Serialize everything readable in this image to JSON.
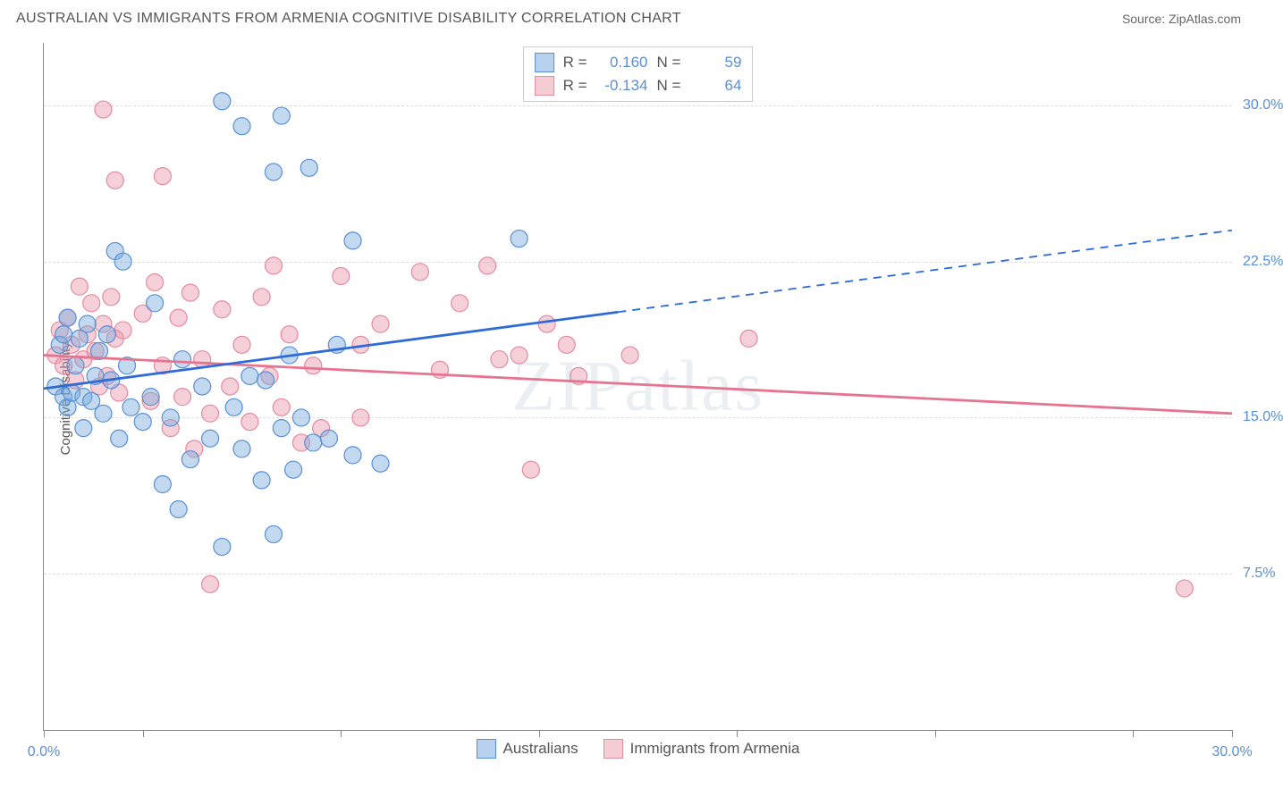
{
  "header": {
    "title": "AUSTRALIAN VS IMMIGRANTS FROM ARMENIA COGNITIVE DISABILITY CORRELATION CHART",
    "source": "Source: ZipAtlas.com"
  },
  "axes": {
    "y_label": "Cognitive Disability",
    "x_min": 0.0,
    "x_max": 30.0,
    "y_min": 0.0,
    "y_max": 33.0,
    "x_ticks": [
      0.0,
      2.5,
      7.5,
      12.5,
      17.5,
      22.5,
      27.5,
      30.0
    ],
    "x_tick_labels": {
      "0": "0.0%",
      "30": "30.0%"
    },
    "y_gridlines": [
      7.5,
      15.0,
      22.5,
      30.0
    ],
    "y_tick_labels": {
      "7.5": "7.5%",
      "15": "15.0%",
      "22.5": "22.5%",
      "30": "30.0%"
    },
    "label_color": "#555555",
    "tick_label_color": "#5a8fd6"
  },
  "watermark": "ZIPatlas",
  "series": {
    "a": {
      "name": "Australians",
      "swatch_fill": "#b7d1ee",
      "swatch_stroke": "#5a8fd6",
      "point_fill": "rgba(120,170,220,0.45)",
      "point_stroke": "#5a8fd6",
      "line_color": "#2e6bd6",
      "r_value": "0.160",
      "n_value": "59",
      "regression": {
        "x0": 0.0,
        "y0": 16.4,
        "x1": 30.0,
        "y1": 24.0,
        "solid_to_x": 14.5
      },
      "points": [
        [
          0.3,
          16.5
        ],
        [
          0.4,
          18.5
        ],
        [
          0.5,
          16.0
        ],
        [
          0.5,
          19.0
        ],
        [
          0.6,
          15.5
        ],
        [
          0.6,
          19.8
        ],
        [
          0.7,
          16.2
        ],
        [
          0.8,
          17.5
        ],
        [
          0.9,
          18.8
        ],
        [
          1.0,
          16.0
        ],
        [
          1.0,
          14.5
        ],
        [
          1.1,
          19.5
        ],
        [
          1.2,
          15.8
        ],
        [
          1.3,
          17.0
        ],
        [
          1.4,
          18.2
        ],
        [
          1.5,
          15.2
        ],
        [
          1.6,
          19.0
        ],
        [
          1.7,
          16.8
        ],
        [
          1.8,
          23.0
        ],
        [
          1.9,
          14.0
        ],
        [
          2.0,
          22.5
        ],
        [
          2.1,
          17.5
        ],
        [
          2.2,
          15.5
        ],
        [
          2.5,
          14.8
        ],
        [
          2.7,
          16.0
        ],
        [
          2.8,
          20.5
        ],
        [
          3.0,
          11.8
        ],
        [
          3.2,
          15.0
        ],
        [
          3.4,
          10.6
        ],
        [
          3.5,
          17.8
        ],
        [
          3.7,
          13.0
        ],
        [
          4.0,
          16.5
        ],
        [
          4.2,
          14.0
        ],
        [
          4.5,
          8.8
        ],
        [
          4.5,
          30.2
        ],
        [
          4.8,
          15.5
        ],
        [
          5.0,
          13.5
        ],
        [
          5.0,
          29.0
        ],
        [
          5.2,
          17.0
        ],
        [
          5.5,
          12.0
        ],
        [
          5.6,
          16.8
        ],
        [
          5.8,
          9.4
        ],
        [
          5.8,
          26.8
        ],
        [
          6.0,
          14.5
        ],
        [
          6.0,
          29.5
        ],
        [
          6.2,
          18.0
        ],
        [
          6.3,
          12.5
        ],
        [
          6.7,
          27.0
        ],
        [
          6.5,
          15.0
        ],
        [
          6.8,
          13.8
        ],
        [
          7.2,
          14.0
        ],
        [
          7.4,
          18.5
        ],
        [
          7.8,
          23.5
        ],
        [
          7.8,
          13.2
        ],
        [
          8.5,
          12.8
        ],
        [
          12.0,
          23.6
        ]
      ]
    },
    "b": {
      "name": "Immigrants from Armenia",
      "swatch_fill": "#f6ccd5",
      "swatch_stroke": "#e38ba0",
      "point_fill": "rgba(235,150,170,0.45)",
      "point_stroke": "#e38ba0",
      "line_color": "#e67390",
      "r_value": "-0.134",
      "n_value": "64",
      "regression": {
        "x0": 0.0,
        "y0": 18.0,
        "x1": 30.0,
        "y1": 15.2,
        "solid_to_x": 30.0
      },
      "points": [
        [
          0.3,
          18.0
        ],
        [
          0.4,
          19.2
        ],
        [
          0.5,
          17.5
        ],
        [
          0.6,
          19.8
        ],
        [
          0.7,
          18.5
        ],
        [
          0.8,
          16.8
        ],
        [
          0.9,
          21.3
        ],
        [
          1.0,
          17.8
        ],
        [
          1.1,
          19.0
        ],
        [
          1.2,
          20.5
        ],
        [
          1.3,
          18.2
        ],
        [
          1.4,
          16.5
        ],
        [
          1.5,
          19.5
        ],
        [
          1.5,
          29.8
        ],
        [
          1.6,
          17.0
        ],
        [
          1.7,
          20.8
        ],
        [
          1.8,
          18.8
        ],
        [
          1.8,
          26.4
        ],
        [
          1.9,
          16.2
        ],
        [
          2.0,
          19.2
        ],
        [
          2.5,
          20.0
        ],
        [
          2.7,
          15.8
        ],
        [
          2.8,
          21.5
        ],
        [
          3.0,
          17.5
        ],
        [
          3.0,
          26.6
        ],
        [
          3.2,
          14.5
        ],
        [
          3.4,
          19.8
        ],
        [
          3.5,
          16.0
        ],
        [
          3.7,
          21.0
        ],
        [
          3.8,
          13.5
        ],
        [
          4.0,
          17.8
        ],
        [
          4.2,
          15.2
        ],
        [
          4.2,
          7.0
        ],
        [
          4.5,
          20.2
        ],
        [
          4.7,
          16.5
        ],
        [
          5.0,
          18.5
        ],
        [
          5.2,
          14.8
        ],
        [
          5.5,
          20.8
        ],
        [
          5.7,
          17.0
        ],
        [
          5.8,
          22.3
        ],
        [
          6.0,
          15.5
        ],
        [
          6.2,
          19.0
        ],
        [
          6.5,
          13.8
        ],
        [
          6.8,
          17.5
        ],
        [
          7.0,
          14.5
        ],
        [
          7.5,
          21.8
        ],
        [
          8.0,
          15.0
        ],
        [
          8.0,
          18.5
        ],
        [
          8.5,
          19.5
        ],
        [
          9.5,
          22.0
        ],
        [
          10.0,
          17.3
        ],
        [
          10.5,
          20.5
        ],
        [
          11.2,
          22.3
        ],
        [
          11.5,
          17.8
        ],
        [
          12.0,
          18.0
        ],
        [
          12.3,
          12.5
        ],
        [
          12.7,
          19.5
        ],
        [
          13.2,
          18.5
        ],
        [
          13.5,
          17.0
        ],
        [
          14.8,
          18.0
        ],
        [
          17.8,
          18.8
        ],
        [
          28.8,
          6.8
        ]
      ]
    }
  },
  "style": {
    "marker_radius": 9.5,
    "line_width": 2.8,
    "grid_color": "#dddddd",
    "axis_color": "#888888",
    "background": "#ffffff"
  },
  "legend_top": {
    "r_label": "R =",
    "n_label": "N ="
  }
}
